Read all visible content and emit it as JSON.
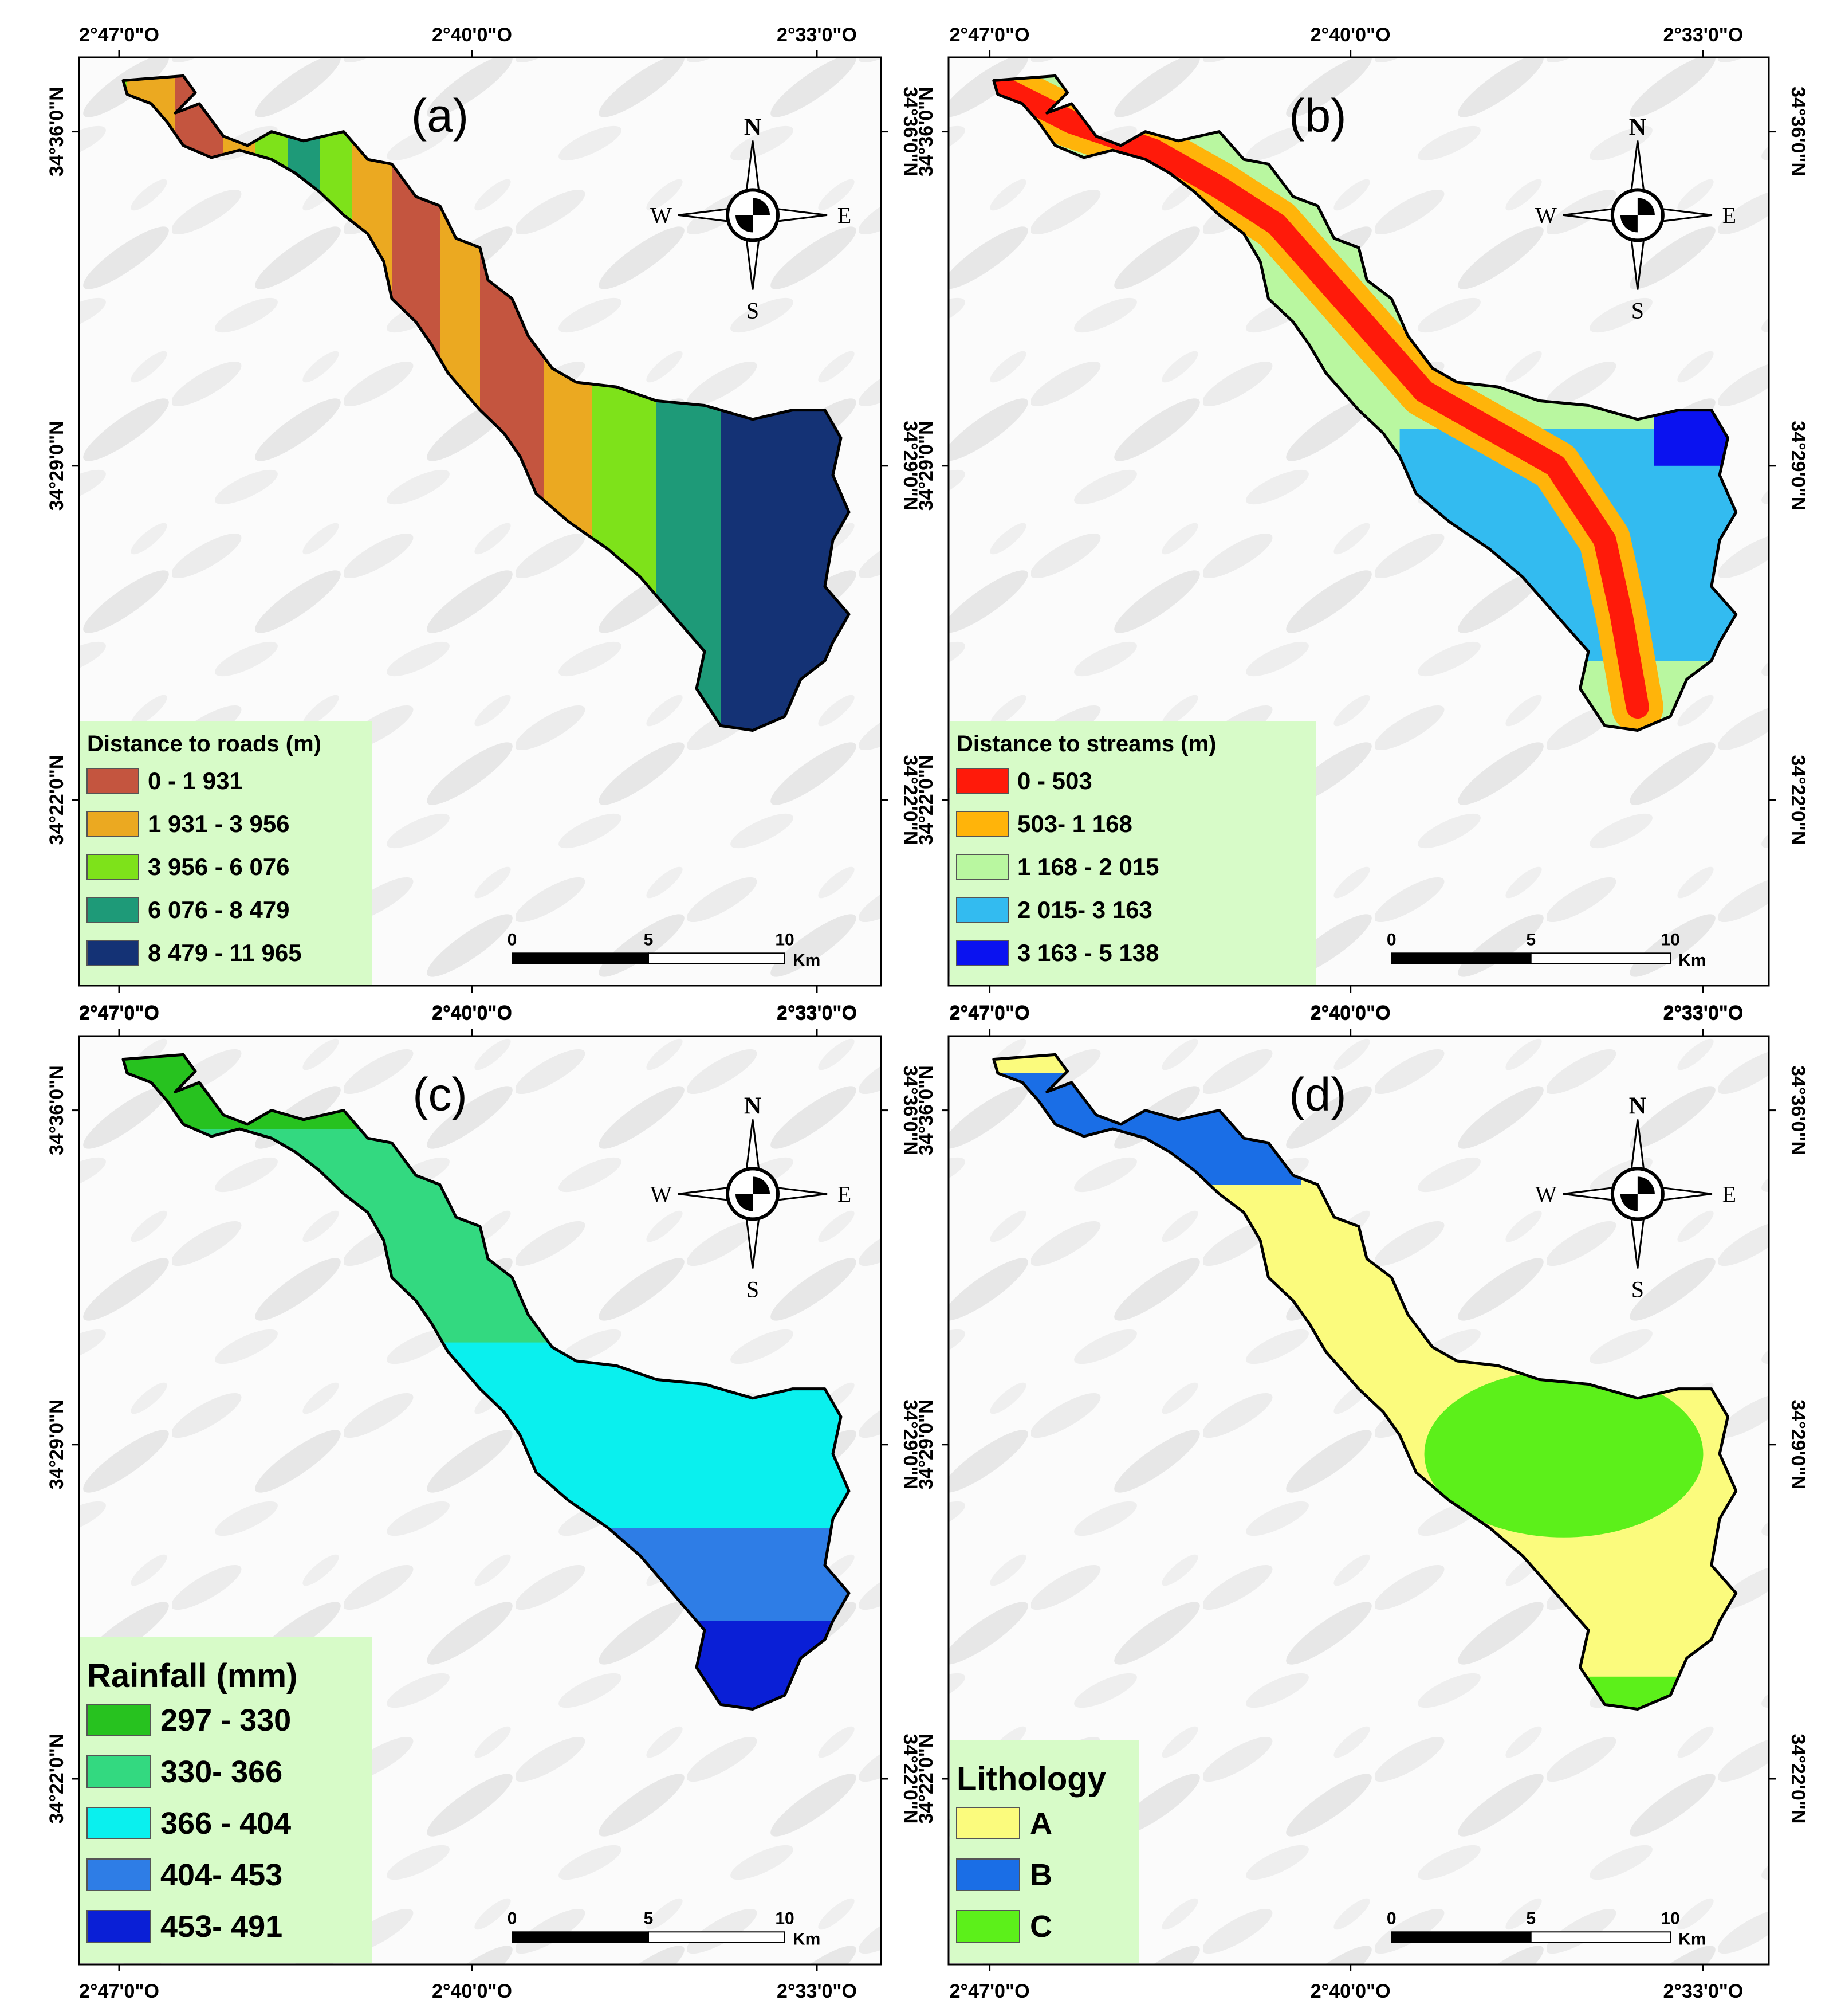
{
  "figure": {
    "panels": [
      {
        "id": "a",
        "label": "(a)",
        "legend": {
          "title": "Distance to roads (m)",
          "classes": [
            {
              "label": "0 - 1 931",
              "color": "#c4553f"
            },
            {
              "label": "1 931 - 3 956",
              "color": "#eba921"
            },
            {
              "label": "3 956 - 6 076",
              "color": "#7ee21a"
            },
            {
              "label": "6 076 - 8 479",
              "color": "#1e9a78"
            },
            {
              "label": "8 479 - 11 965",
              "color": "#143275"
            }
          ]
        }
      },
      {
        "id": "b",
        "label": "(b)",
        "legend": {
          "title": "Distance to streams (m)",
          "classes": [
            {
              "label": "0 - 503",
              "color": "#ff1a0a"
            },
            {
              "label": "503- 1 168",
              "color": "#ffb40a"
            },
            {
              "label": "1 168 - 2 015",
              "color": "#b9f7a0"
            },
            {
              "label": "2 015- 3 163",
              "color": "#33bbf0"
            },
            {
              "label": "3 163 - 5 138",
              "color": "#0a12f0"
            }
          ]
        }
      },
      {
        "id": "c",
        "label": "(c)",
        "legend": {
          "title": "Rainfall (mm)",
          "classes": [
            {
              "label": "297 - 330",
              "color": "#27c21f"
            },
            {
              "label": "330- 366",
              "color": "#33d980"
            },
            {
              "label": "366 - 404",
              "color": "#0af0ee"
            },
            {
              "label": "404- 453",
              "color": "#2e7de6"
            },
            {
              "label": "453- 491",
              "color": "#0a1fd6"
            }
          ]
        }
      },
      {
        "id": "d",
        "label": "(d)",
        "legend": {
          "title": "Lithology",
          "classes": [
            {
              "label": "A",
              "color": "#fbfb7d"
            },
            {
              "label": "B",
              "color": "#1a6ee6"
            },
            {
              "label": "C",
              "color": "#5cf01a"
            }
          ]
        }
      }
    ],
    "longitude_ticks": [
      "2°47'0\"O",
      "2°40'0\"O",
      "2°33'0\"O"
    ],
    "latitude_ticks": [
      "34°36'0\"N",
      "34°29'0\"N",
      "34°22'0\"N"
    ],
    "compass": {
      "n": "N",
      "s": "S",
      "e": "E",
      "w": "W"
    },
    "scale_bar": {
      "ticks": [
        "0",
        "5",
        "10"
      ],
      "unit": "Km"
    },
    "colors": {
      "background": "#ffffff",
      "frame": "#000000",
      "legend_bg": "#d7fbc8",
      "hillshade": "#e6e6e6",
      "outline": "#000000"
    }
  }
}
